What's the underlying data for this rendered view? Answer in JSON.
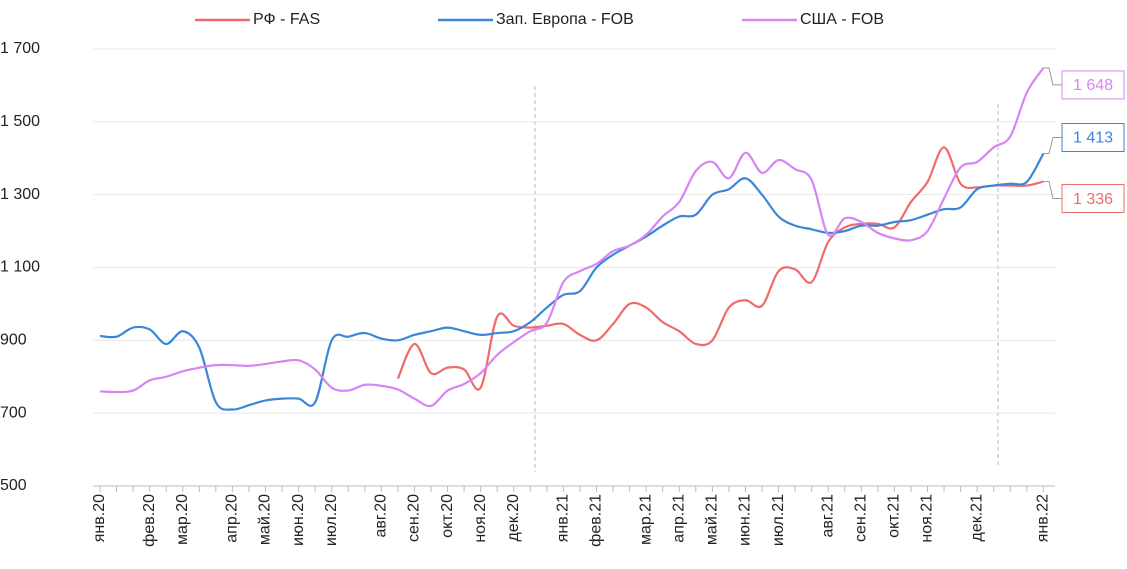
{
  "chart_data": {
    "type": "line",
    "categories": [
      "янв.20",
      null,
      null,
      "фев.20",
      null,
      "мар.20",
      null,
      null,
      "апр.20",
      null,
      "май.20",
      null,
      "июн.20",
      null,
      "июл.20",
      null,
      null,
      "авг.20",
      null,
      "сен.20",
      null,
      "окт.20",
      null,
      "ноя.20",
      null,
      "дек.20",
      null,
      null,
      "янв.21",
      null,
      "фев.21",
      null,
      null,
      "мар.21",
      null,
      "апр.21",
      null,
      "май.21",
      null,
      "июн.21",
      null,
      "июл.21",
      null,
      null,
      "авг.21",
      null,
      "сен.21",
      null,
      "окт.21",
      null,
      "ноя.21",
      null,
      null,
      "дек.21",
      null,
      null,
      null,
      "янв.22"
    ],
    "series": [
      {
        "name": "РФ - FAS",
        "color": "#ef6b6b",
        "values": [
          null,
          null,
          null,
          null,
          null,
          null,
          null,
          null,
          null,
          null,
          null,
          null,
          null,
          null,
          null,
          null,
          null,
          null,
          795,
          890,
          810,
          825,
          820,
          770,
          965,
          940,
          935,
          940,
          945,
          915,
          900,
          945,
          1000,
          990,
          950,
          925,
          890,
          900,
          990,
          1010,
          995,
          1090,
          1095,
          1060,
          1170,
          1210,
          1220,
          1220,
          1210,
          1280,
          1335,
          1430,
          1330,
          1320,
          1325,
          1325,
          1325,
          1336
        ],
        "value_labels": [
          null,
          null,
          null,
          null,
          null,
          null,
          null,
          null,
          null,
          null,
          null,
          null,
          null,
          null,
          null,
          null,
          null,
          null,
          null,
          null,
          null,
          null,
          null,
          null,
          null,
          null,
          null,
          null,
          null,
          null,
          null,
          null,
          null,
          null,
          null,
          null,
          null,
          null,
          null,
          null,
          null,
          null,
          null,
          null,
          null,
          null,
          null,
          null,
          null,
          null,
          null,
          null,
          null,
          null,
          null,
          null,
          null,
          "1 336"
        ]
      },
      {
        "name": "Зап. Европа - FOB",
        "color": "#3b86d8",
        "values": [
          912,
          910,
          935,
          930,
          890,
          925,
          880,
          730,
          710,
          722,
          735,
          740,
          740,
          730,
          900,
          910,
          920,
          905,
          900,
          915,
          925,
          935,
          925,
          915,
          920,
          925,
          950,
          990,
          1025,
          1035,
          1100,
          1135,
          1160,
          1185,
          1215,
          1240,
          1245,
          1300,
          1315,
          1345,
          1300,
          1240,
          1215,
          1205,
          1195,
          1200,
          1215,
          1215,
          1225,
          1230,
          1245,
          1260,
          1265,
          1315,
          1325,
          1330,
          1335,
          1413
        ],
        "value_labels": [
          null,
          null,
          null,
          null,
          null,
          null,
          null,
          null,
          null,
          null,
          null,
          null,
          null,
          null,
          null,
          null,
          null,
          null,
          null,
          null,
          null,
          null,
          null,
          null,
          null,
          null,
          null,
          null,
          null,
          null,
          null,
          null,
          null,
          null,
          null,
          null,
          null,
          null,
          null,
          null,
          null,
          null,
          null,
          null,
          null,
          null,
          null,
          null,
          null,
          null,
          null,
          null,
          null,
          null,
          null,
          null,
          null,
          "1 413"
        ]
      },
      {
        "name": "США - FOB",
        "color": "#d685f5",
        "values": [
          760,
          758,
          762,
          790,
          800,
          815,
          825,
          832,
          832,
          830,
          835,
          842,
          845,
          820,
          770,
          762,
          778,
          775,
          765,
          740,
          720,
          762,
          780,
          810,
          860,
          895,
          925,
          948,
          1060,
          1090,
          1110,
          1145,
          1160,
          1190,
          1240,
          1280,
          1365,
          1390,
          1345,
          1415,
          1360,
          1395,
          1370,
          1340,
          1190,
          1235,
          1225,
          1195,
          1180,
          1175,
          1200,
          1290,
          1375,
          1390,
          1430,
          1460,
          1580,
          1648
        ],
        "value_labels": [
          null,
          null,
          null,
          null,
          null,
          null,
          null,
          null,
          null,
          null,
          null,
          null,
          null,
          null,
          null,
          null,
          null,
          null,
          null,
          null,
          null,
          null,
          null,
          null,
          null,
          null,
          null,
          null,
          null,
          null,
          null,
          null,
          null,
          null,
          null,
          null,
          null,
          null,
          null,
          null,
          null,
          null,
          null,
          null,
          null,
          null,
          null,
          null,
          null,
          null,
          null,
          null,
          null,
          null,
          null,
          null,
          null,
          "1 648"
        ]
      }
    ],
    "ylim": [
      500,
      1700
    ],
    "yticks": [
      500,
      700,
      900,
      {
        "value": 1100,
        "label": "1 100"
      },
      {
        "value": 1300,
        "label": "1 300"
      },
      {
        "value": 1500,
        "label": "1 500"
      },
      {
        "value": 1700,
        "label": "1 700"
      }
    ],
    "grid": true,
    "legend": "top"
  }
}
